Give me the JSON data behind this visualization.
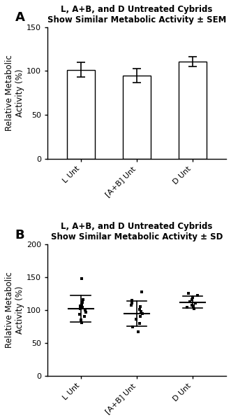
{
  "title_A": "L, A+B, and D Untreated Cybrids\nShow Similar Metabolic Activity ± SEM",
  "title_B": "L, A+B, and D Untreated Cybrids\nShow Similar Metabolic Activity ± SD",
  "categories": [
    "L Unt",
    "[A+B] Unt",
    "D Unt"
  ],
  "bar_means": [
    101.5,
    94.5,
    111.0
  ],
  "bar_sems": [
    8.5,
    8.0,
    5.5
  ],
  "ylabel": "Relative Metabolic\nActivity (%)",
  "ylim_A": [
    0,
    150
  ],
  "yticks_A": [
    0,
    50,
    100,
    150
  ],
  "ylim_B": [
    0,
    200
  ],
  "yticks_B": [
    0,
    50,
    100,
    150,
    200
  ],
  "bar_color": "#ffffff",
  "bar_edgecolor": "#000000",
  "scatter_L": [
    148.0,
    116.0,
    112.0,
    109.0,
    106.0,
    104.0,
    102.0,
    100.0,
    97.0,
    94.0,
    90.0,
    85.0,
    81.0
  ],
  "scatter_AB": [
    128.0,
    115.0,
    111.0,
    108.0,
    105.0,
    101.0,
    98.0,
    95.0,
    91.0,
    86.0,
    80.0,
    75.0,
    67.0
  ],
  "scatter_D": [
    126.0,
    122.0,
    119.0,
    116.0,
    113.0,
    111.0,
    108.0,
    106.0,
    104.0,
    102.0
  ],
  "mean_B": [
    102.0,
    95.0,
    112.0
  ],
  "sd_B": [
    20.0,
    19.0,
    9.0
  ],
  "title_fontsize": 8.5,
  "label_fontsize": 8.5,
  "tick_fontsize": 8,
  "background_color": "#ffffff"
}
